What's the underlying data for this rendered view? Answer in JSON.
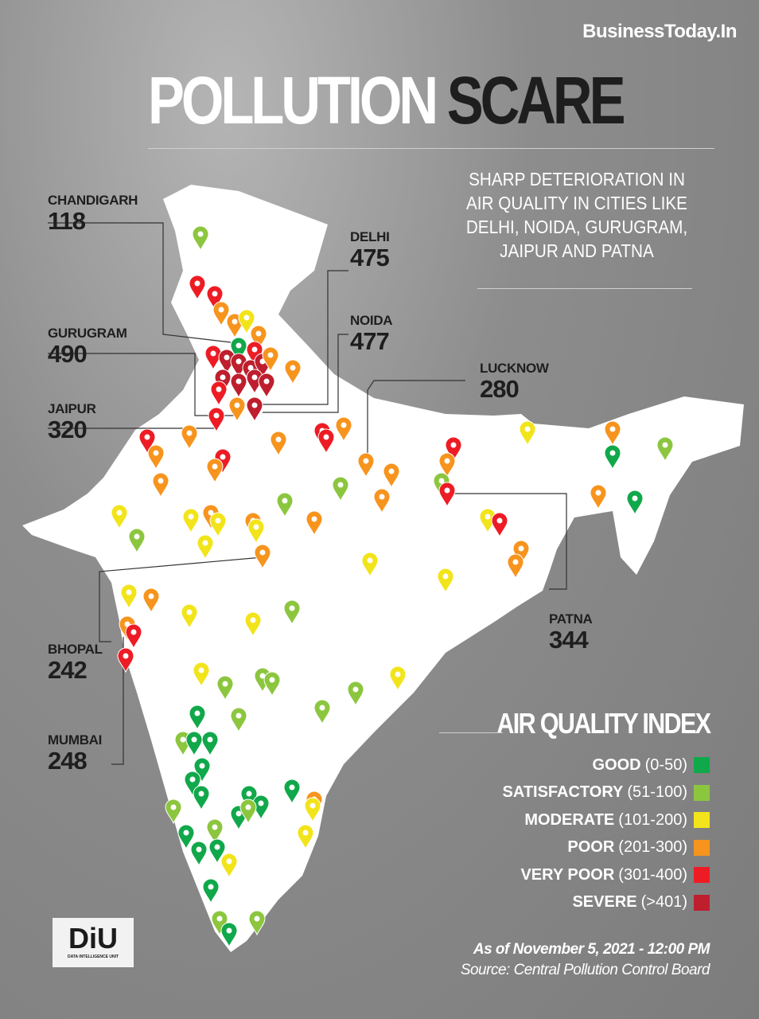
{
  "brand": "BusinessToday.In",
  "title": {
    "part1": "POLLUTION",
    "part2": "SCARE"
  },
  "subtitle": "SHARP DETERIORATION IN AIR QUALITY IN CITIES LIKE DELHI, NOIDA, GURUGRAM, JAIPUR AND PATNA",
  "cities": [
    {
      "name": "CHANDIGARH",
      "aqi": "118"
    },
    {
      "name": "DELHI",
      "aqi": "475"
    },
    {
      "name": "GURUGRAM",
      "aqi": "490"
    },
    {
      "name": "NOIDA",
      "aqi": "477"
    },
    {
      "name": "LUCKNOW",
      "aqi": "280"
    },
    {
      "name": "JAIPUR",
      "aqi": "320"
    },
    {
      "name": "PATNA",
      "aqi": "344"
    },
    {
      "name": "BHOPAL",
      "aqi": "242"
    },
    {
      "name": "MUMBAI",
      "aqi": "248"
    }
  ],
  "legend": {
    "title": "AIR QUALITY INDEX",
    "items": [
      {
        "label": "GOOD",
        "range": "(0-50)",
        "color": "#10a84a"
      },
      {
        "label": "SATISFACTORY",
        "range": "(51-100)",
        "color": "#8cc63f"
      },
      {
        "label": "MODERATE",
        "range": "(101-200)",
        "color": "#f2e41a"
      },
      {
        "label": "POOR",
        "range": "(201-300)",
        "color": "#f7941d"
      },
      {
        "label": "VERY POOR",
        "range": "(301-400)",
        "color": "#ed1c24"
      },
      {
        "label": "SEVERE",
        "range": "(>401)",
        "color": "#be1e2d"
      }
    ]
  },
  "as_of": "As of November 5, 2021 - 12:00 PM",
  "source": "Source: Central Pollution Control Board",
  "logo": {
    "text": "DiU",
    "subtext": "DATA INTELLIGENCE UNIT"
  }
}
